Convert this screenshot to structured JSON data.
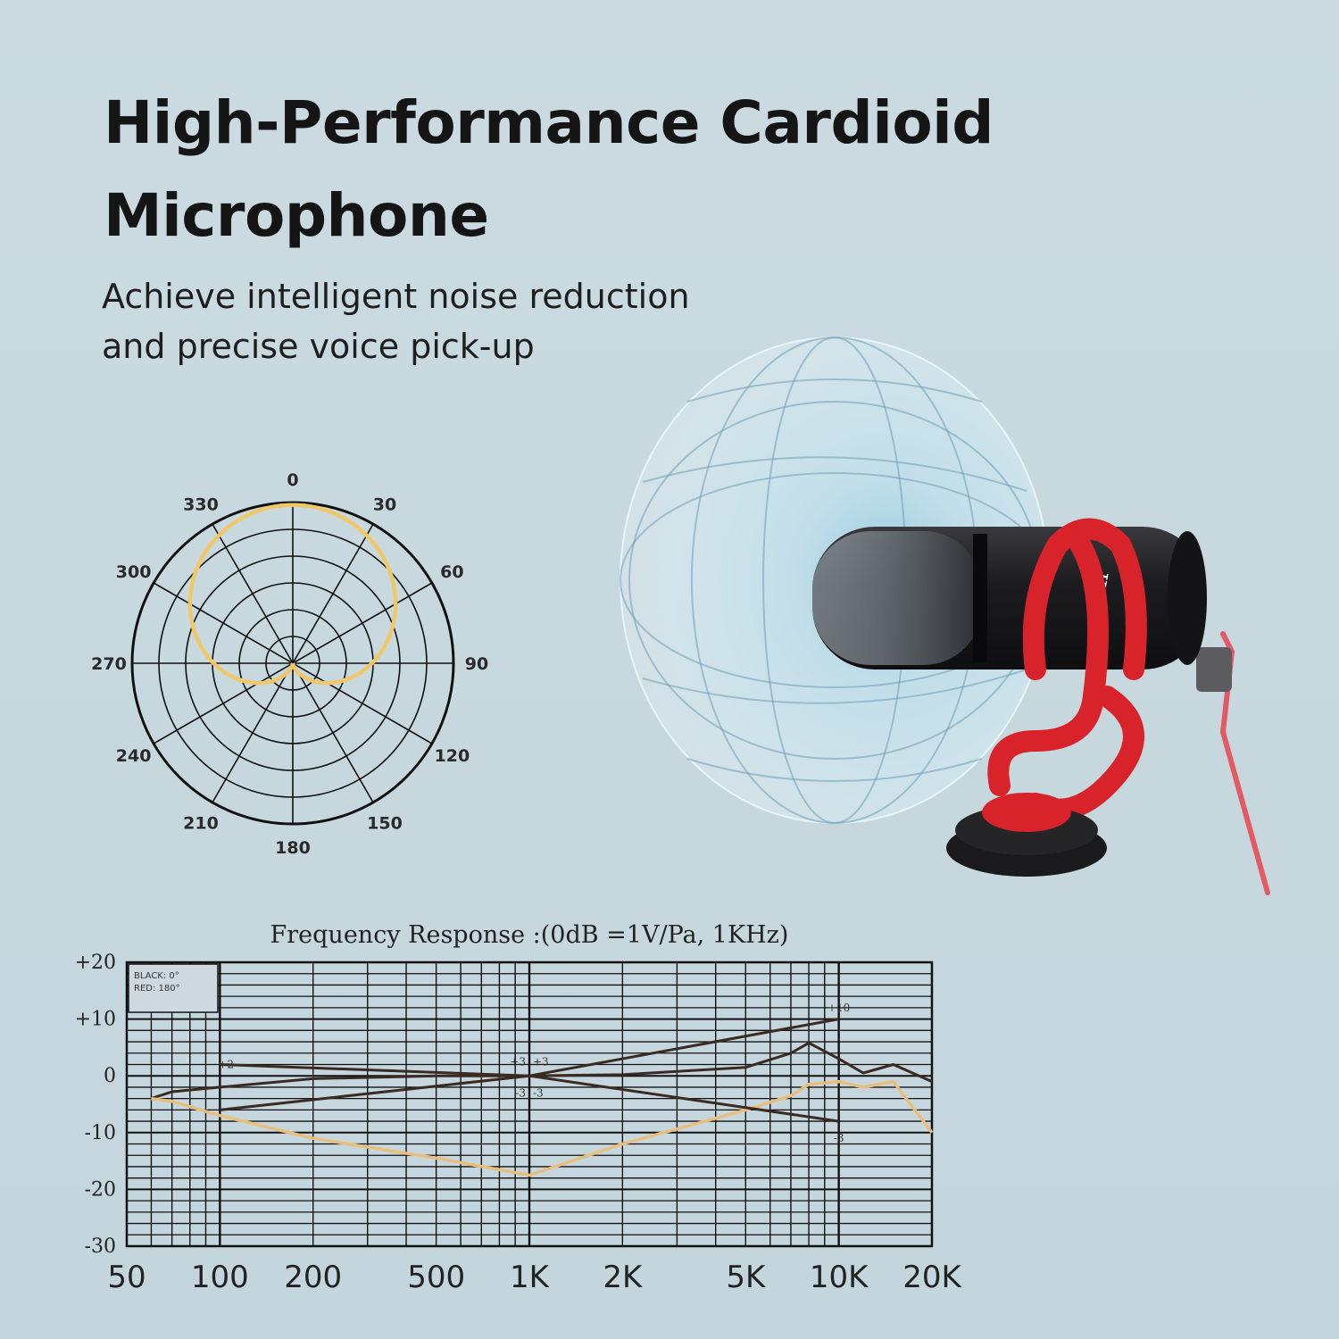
{
  "heading": {
    "line1": "High-Performance Cardioid",
    "line2": "Microphone"
  },
  "subheading": {
    "line1": "Achieve intelligent noise reduction",
    "line2": "and precise voice pick-up"
  },
  "product": {
    "brand_text": "sm",
    "icon": "cardioid-microphone-icon",
    "colors": {
      "body": "#1b1b1e",
      "mount": "#d8232a",
      "pickup_field": "#9fd0e2"
    }
  },
  "chart_data": [
    {
      "type": "polar",
      "angles": [
        "0",
        "30",
        "60",
        "90",
        "120",
        "150",
        "180",
        "210",
        "240",
        "270",
        "300",
        "330"
      ],
      "pattern": "cardioid",
      "rings": 6,
      "color": "#f0c86a"
    },
    {
      "type": "line",
      "title": "Frequency  Response :(0dB =1V/Pa, 1KHz)",
      "xscale": "log",
      "xlim": [
        50,
        20000
      ],
      "ylim": [
        -30,
        20
      ],
      "x_ticks": [
        50,
        100,
        200,
        500,
        1000,
        2000,
        5000,
        10000,
        20000
      ],
      "x_tick_labels": [
        "50",
        "100",
        "200",
        "500",
        "1K",
        "2K",
        "5K",
        "10K",
        "20K"
      ],
      "y_ticks": [
        20,
        10,
        0,
        -10,
        -20,
        -30
      ],
      "y_tick_labels": [
        "+20",
        "+10",
        "0",
        "-10",
        "-20",
        "-30"
      ],
      "legend": {
        "line1": "BLACK: 0°",
        "line2": "RED: 180°",
        "position": "top-left"
      },
      "annotations": [
        "+2",
        "+3",
        "+3",
        "-3",
        "-3",
        "+10",
        "-3"
      ],
      "grid": true,
      "series": [
        {
          "color": "#3a2a22",
          "x": [
            60,
            70,
            100,
            200,
            500,
            1000,
            2000,
            5000,
            7000,
            8000,
            10000,
            12000,
            15000,
            20000
          ],
          "y": [
            -4,
            -2.8,
            -2,
            -0.5,
            0,
            0,
            0.2,
            1.5,
            4,
            5.8,
            3,
            0.5,
            2,
            -1
          ]
        },
        {
          "color": "#e9bf7f",
          "x": [
            60,
            70,
            100,
            200,
            500,
            1000,
            2000,
            5000,
            7000,
            8000,
            10000,
            12000,
            15000,
            20000
          ],
          "y": [
            -4,
            -4.5,
            -7,
            -11,
            -14.5,
            -17.5,
            -12,
            -6,
            -3.5,
            -1.5,
            -1,
            -2,
            -1,
            -10
          ]
        },
        {
          "color": "#3a2a22",
          "x": [
            100,
            1000,
            10000
          ],
          "y": [
            2,
            0,
            10
          ]
        },
        {
          "color": "#3a2a22",
          "x": [
            100,
            1000,
            10000
          ],
          "y": [
            -6,
            0,
            -8
          ]
        }
      ]
    }
  ]
}
